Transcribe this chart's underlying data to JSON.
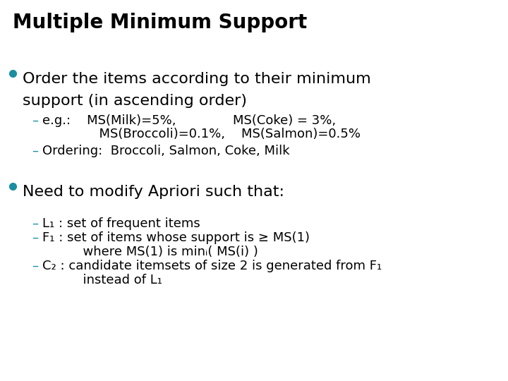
{
  "title": "Multiple Minimum Support",
  "title_color": "#000000",
  "title_fontsize": 20,
  "background_color": "#ffffff",
  "bullet_color": "#1a8fa0",
  "dash_color": "#1a8fa0",
  "text_color": "#000000",
  "bullet1_text_line1": "Order the items according to their minimum",
  "bullet1_text_line2": "support (in ascending order)",
  "bullet1_fontsize": 16,
  "sub1_eg_line1": "e.g.:    MS(Milk)=5%,              MS(Coke) = 3%,",
  "sub1_eg_line2": "              MS(Broccoli)=0.1%,    MS(Salmon)=0.5%",
  "sub1_ordering": "Ordering:  Broccoli, Salmon, Coke, Milk",
  "sub_fontsize": 13,
  "bullet2_text": "Need to modify Apriori such that:",
  "bullet2_fontsize": 16,
  "sub2_L1": "L₁ : set of frequent items",
  "sub2_F1": "F₁ : set of items whose support is ≥ MS(1)",
  "sub2_F1_cont": "          where MS(1) is minᵢ( MS(i) )",
  "sub2_C2": "C₂ : candidate itemsets of size 2 is generated from F₁",
  "sub2_C2_cont": "          instead of L₁"
}
